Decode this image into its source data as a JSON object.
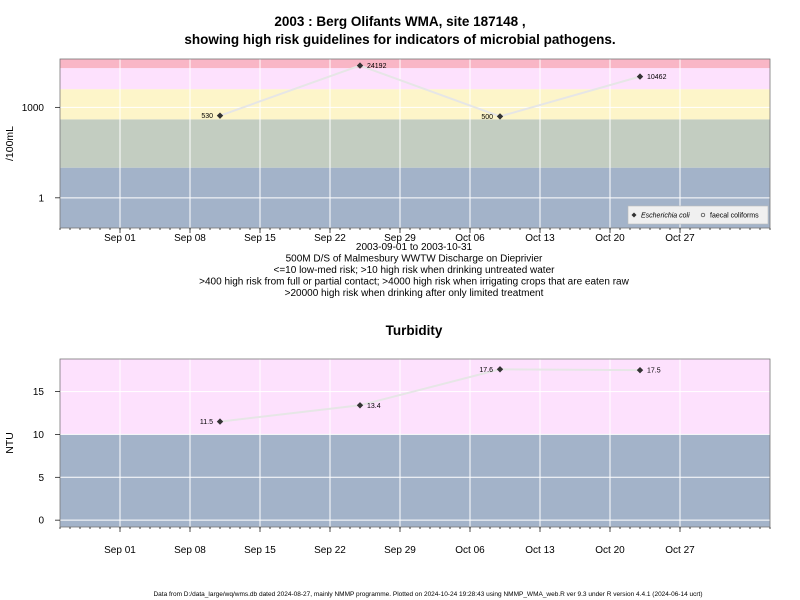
{
  "colors": {
    "low": "#a3b3c9",
    "sage": "#c3cdc1",
    "yellow": "#fdf5c9",
    "pink": "#fde1fd",
    "red": "#f9b6c6",
    "line": "#e6e6e6",
    "grid": "#ffffff",
    "point": "#333333"
  },
  "title_line1": "2003 : Berg Olifants WMA, site 187148 ,",
  "title_line2": "showing high risk guidelines for indicators of microbial pathogens.",
  "footer": "Data from D:/data_large/wq/wms.db dated 2024-08-27, mainly NMMP programme. Plotted on 2024-10-24 19:28:43 using NMMP_WMA_web.R ver 9.3 under R version 4.4.1 (2024-06-14 ucrt)",
  "chart_data": [
    {
      "type": "line",
      "ylabel": "/100mL",
      "y_scale": "log",
      "y_ticks": [
        {
          "value": 1,
          "label": "1"
        },
        {
          "value": 1000,
          "label": "1000"
        }
      ],
      "ylim": [
        0.1,
        40000
      ],
      "xlim": [
        "2003-08-26",
        "2003-11-05"
      ],
      "x_ticks": [
        {
          "date": "2003-09-01",
          "label": "Sep 01"
        },
        {
          "date": "2003-09-08",
          "label": "Sep 08"
        },
        {
          "date": "2003-09-15",
          "label": "Sep 15"
        },
        {
          "date": "2003-09-22",
          "label": "Sep 22"
        },
        {
          "date": "2003-09-29",
          "label": "Sep 29"
        },
        {
          "date": "2003-10-06",
          "label": "Oct 06"
        },
        {
          "date": "2003-10-13",
          "label": "Oct 13"
        },
        {
          "date": "2003-10-20",
          "label": "Oct 20"
        },
        {
          "date": "2003-10-27",
          "label": "Oct 27"
        }
      ],
      "bands": [
        {
          "from": 0.1,
          "to": 10,
          "color": "low"
        },
        {
          "from": 10,
          "to": 400,
          "color": "sage"
        },
        {
          "from": 400,
          "to": 4000,
          "color": "yellow"
        },
        {
          "from": 4000,
          "to": 20000,
          "color": "pink"
        },
        {
          "from": 20000,
          "to": 40000,
          "color": "red"
        }
      ],
      "series": [
        {
          "name": "Escherichia coli",
          "points": [
            {
              "x": "2003-09-11",
              "y": 530,
              "label": "530",
              "label_side": "left"
            },
            {
              "x": "2003-09-25",
              "y": 24192,
              "label": "24192",
              "label_side": "right"
            },
            {
              "x": "2003-10-09",
              "y": 500,
              "label": "500",
              "label_side": "left"
            },
            {
              "x": "2003-10-23",
              "y": 10462,
              "label": "10462",
              "label_side": "right"
            }
          ]
        }
      ],
      "legend": {
        "placement": "bottom-right",
        "entries": [
          {
            "label": "Escherichia coli",
            "marker": "filled-diamond",
            "italic": true
          },
          {
            "label": "faecal coliforms",
            "marker": "open-circle",
            "italic": false
          }
        ]
      },
      "xlabel_lines": [
        "2003-09-01 to 2003-10-31",
        "500M D/S of Malmesbury WWTW Discharge on Dieprivier",
        "<=10 low-med risk; >10 high risk when drinking untreated water",
        ">400 high risk from full or partial contact; >4000 high risk when irrigating crops that are eaten raw",
        ">20000 high risk when drinking after only limited treatment"
      ]
    },
    {
      "type": "line",
      "title": "Turbidity",
      "ylabel": "NTU",
      "ylim": [
        -0.8,
        18.8
      ],
      "y_ticks": [
        {
          "value": 0,
          "label": "0"
        },
        {
          "value": 5,
          "label": "5"
        },
        {
          "value": 10,
          "label": "10"
        },
        {
          "value": 15,
          "label": "15"
        }
      ],
      "xlim": [
        "2003-08-26",
        "2003-11-05"
      ],
      "x_ticks": [
        {
          "date": "2003-09-01",
          "label": "Sep 01"
        },
        {
          "date": "2003-09-08",
          "label": "Sep 08"
        },
        {
          "date": "2003-09-15",
          "label": "Sep 15"
        },
        {
          "date": "2003-09-22",
          "label": "Sep 22"
        },
        {
          "date": "2003-09-29",
          "label": "Sep 29"
        },
        {
          "date": "2003-10-06",
          "label": "Oct 06"
        },
        {
          "date": "2003-10-13",
          "label": "Oct 13"
        },
        {
          "date": "2003-10-20",
          "label": "Oct 20"
        },
        {
          "date": "2003-10-27",
          "label": "Oct 27"
        }
      ],
      "bands": [
        {
          "from": -0.8,
          "to": 10,
          "color": "low"
        },
        {
          "from": 10,
          "to": 18.8,
          "color": "pink"
        }
      ],
      "series": [
        {
          "points": [
            {
              "x": "2003-09-11",
              "y": 11.5,
              "label": "11.5",
              "label_side": "left"
            },
            {
              "x": "2003-09-25",
              "y": 13.4,
              "label": "13.4",
              "label_side": "right"
            },
            {
              "x": "2003-10-09",
              "y": 17.6,
              "label": "17.6",
              "label_side": "left"
            },
            {
              "x": "2003-10-23",
              "y": 17.5,
              "label": "17.5",
              "label_side": "right"
            }
          ]
        }
      ]
    }
  ]
}
